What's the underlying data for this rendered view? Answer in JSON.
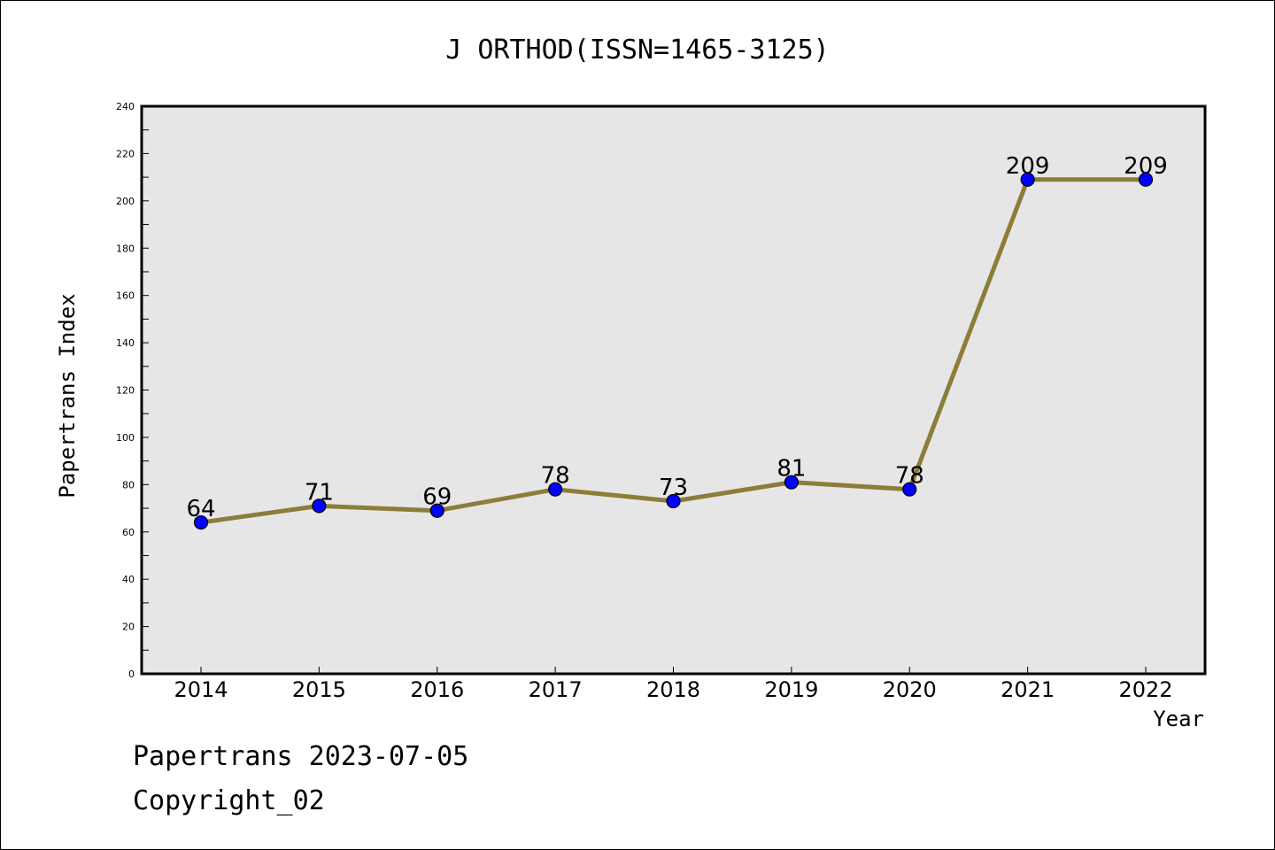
{
  "chart_data": {
    "type": "line",
    "title": "J ORTHOD(ISSN=1465-3125)",
    "xlabel": "Year",
    "ylabel": "Papertrans Index",
    "categories": [
      "2014",
      "2015",
      "2016",
      "2017",
      "2018",
      "2019",
      "2020",
      "2021",
      "2022"
    ],
    "series": [
      {
        "values": [
          64,
          71,
          69,
          78,
          73,
          81,
          78,
          209,
          209
        ]
      }
    ],
    "ylim": [
      0,
      240
    ],
    "yticks": [
      0,
      20,
      40,
      60,
      80,
      100,
      120,
      140,
      160,
      180,
      200,
      220,
      240
    ],
    "grid": false,
    "line_color": "#8b7d3a",
    "marker_color": "#0000ff",
    "plot_background": "#e6e6e6"
  },
  "footer": {
    "line1": "Papertrans 2023-07-05",
    "line2": "Copyright_02"
  }
}
